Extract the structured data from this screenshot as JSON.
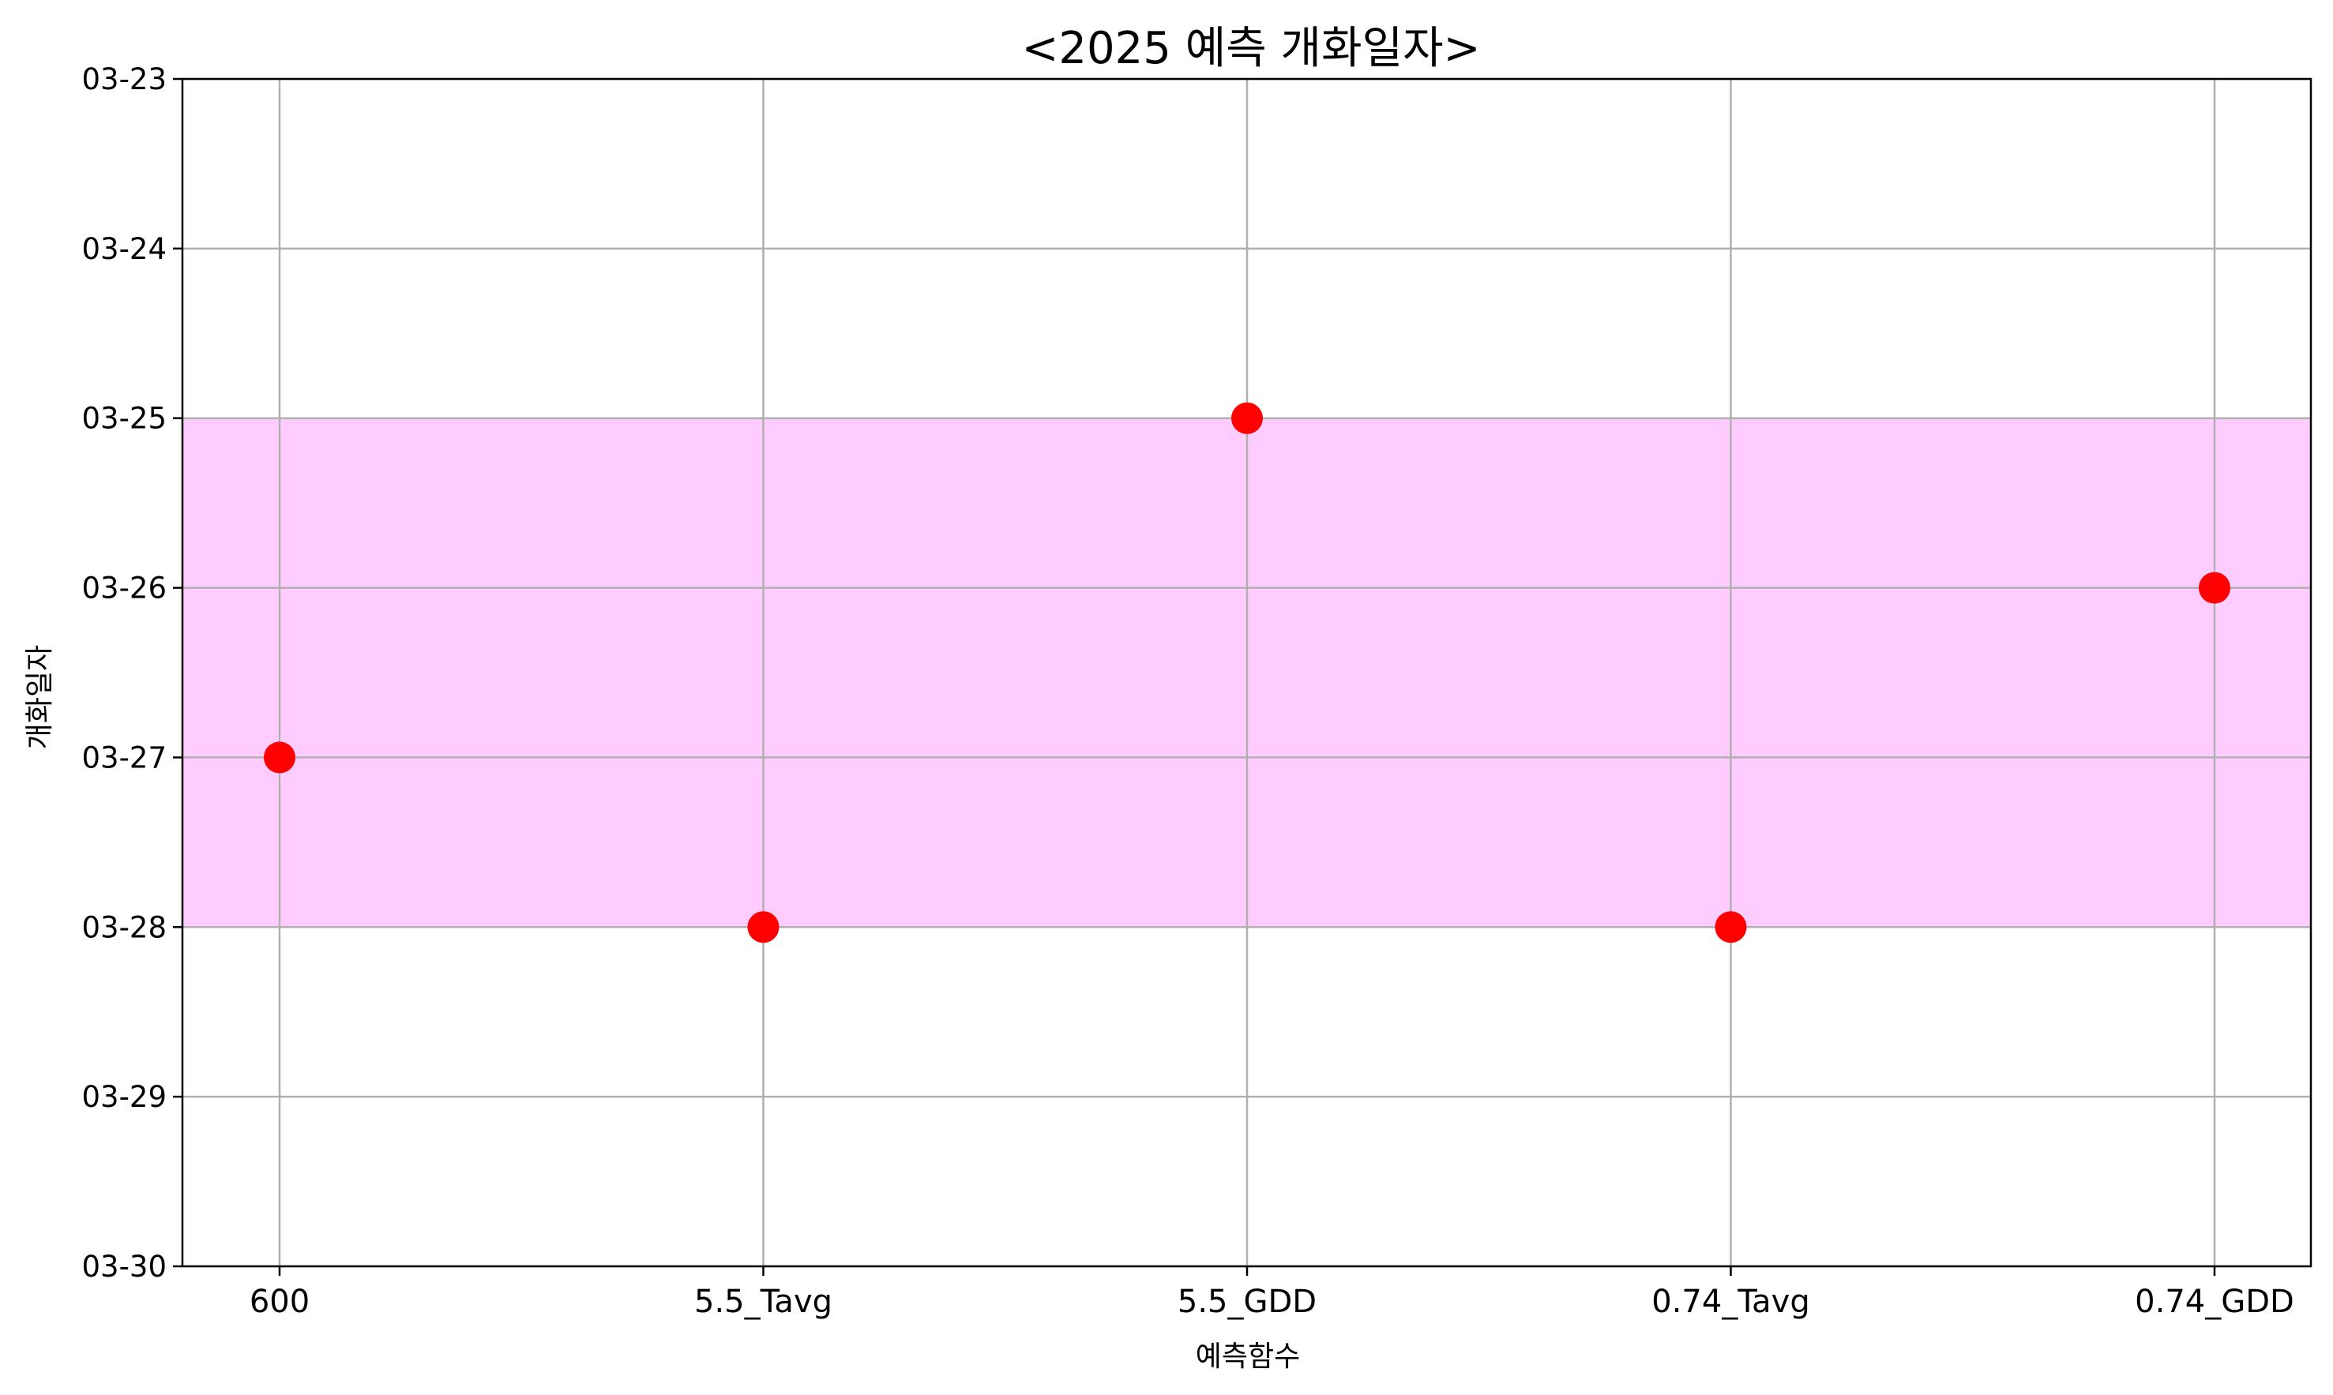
{
  "chart_data": {
    "type": "scatter",
    "title": "<2025 예측 개화일자>",
    "xlabel": "예측함수",
    "ylabel": "개화일자",
    "categories": [
      "600",
      "5.5_Tavg",
      "5.5_GDD",
      "0.74_Tavg",
      "0.74_GDD"
    ],
    "y_ticks": [
      "03-23",
      "03-24",
      "03-25",
      "03-26",
      "03-27",
      "03-28",
      "03-29",
      "03-30"
    ],
    "y_axis_inverted": true,
    "series": [
      {
        "values": [
          "03-27",
          "03-28",
          "03-25",
          "03-28",
          "03-26"
        ],
        "color": "#ff0000"
      }
    ],
    "shaded_band": {
      "from": "03-25",
      "to": "03-28",
      "color": "#ffccff"
    },
    "grid": true,
    "gridColor": "#b0b0b0"
  }
}
